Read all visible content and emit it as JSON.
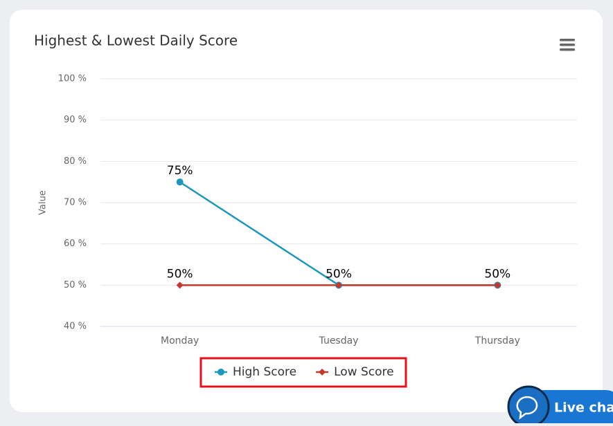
{
  "chart_data": {
    "type": "line",
    "title": "Highest & Lowest Daily Score",
    "y_axis_label": "Value",
    "categories": [
      "Monday",
      "Tuesday",
      "Thursday"
    ],
    "series": [
      {
        "name": "High Score",
        "color": "#1f97bd",
        "marker": "circle",
        "values": [
          75,
          50,
          50
        ],
        "value_labels": [
          "75%",
          "50%",
          "50%"
        ]
      },
      {
        "name": "Low Score",
        "color": "#c0392b",
        "marker": "diamond",
        "values": [
          50,
          50,
          50
        ],
        "value_labels": [
          "50%",
          null,
          null
        ]
      }
    ],
    "ylim": [
      40,
      100
    ],
    "yticks": [
      {
        "value": 40,
        "label": "40 %"
      },
      {
        "value": 50,
        "label": "50 %"
      },
      {
        "value": 60,
        "label": "60 %"
      },
      {
        "value": 70,
        "label": "70 %"
      },
      {
        "value": 80,
        "label": "80 %"
      },
      {
        "value": 90,
        "label": "90 %"
      },
      {
        "value": 100,
        "label": "100 %"
      }
    ],
    "grid": true
  },
  "widget": {
    "live_chat": "Live chat"
  }
}
